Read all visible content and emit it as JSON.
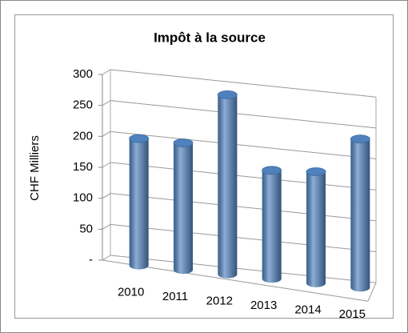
{
  "chart_data": {
    "type": "bar",
    "title": "Impôt à la source",
    "y_label": "CHF Milliers",
    "categories": [
      "2010",
      "2011",
      "2012",
      "2013",
      "2014",
      "2015"
    ],
    "values": [
      205,
      205,
      290,
      175,
      180,
      240
    ],
    "color": "#4f81bd",
    "ylim": [
      0,
      300
    ],
    "yticks": [
      {
        "value": 0,
        "label": "-"
      },
      50,
      100,
      150,
      200,
      250,
      300
    ],
    "grid": true
  }
}
